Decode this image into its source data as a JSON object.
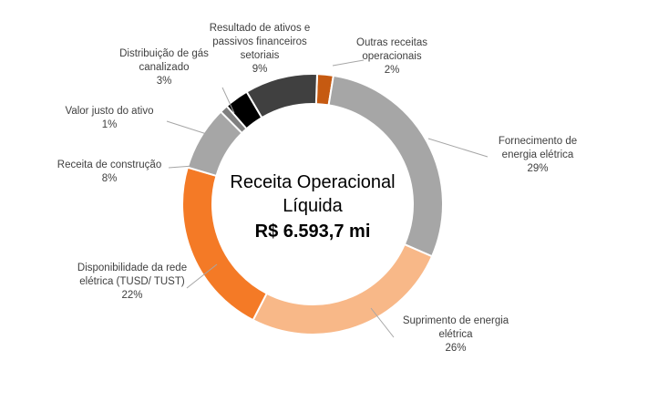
{
  "chart_data": {
    "type": "pie",
    "variant": "donut",
    "center_title_lines": [
      "Receita Operacional",
      "Líquida"
    ],
    "center_value": "R$ 6.593,7 mi",
    "slices": [
      {
        "label_lines": [
          "Outras receitas",
          "operacionais"
        ],
        "percent_label": "2%",
        "value": 2,
        "color": "#c65a11"
      },
      {
        "label_lines": [
          "Fornecimento de",
          "energia elétrica"
        ],
        "percent_label": "29%",
        "value": 29,
        "color": "#a6a6a6"
      },
      {
        "label_lines": [
          "Suprimento de energia",
          "elétrica"
        ],
        "percent_label": "26%",
        "value": 26,
        "color": "#f8b888"
      },
      {
        "label_lines": [
          "Disponibilidade da rede",
          "elétrica (TUSD/ TUST)"
        ],
        "percent_label": "22%",
        "value": 22,
        "color": "#f47a26"
      },
      {
        "label_lines": [
          "Receita de construção"
        ],
        "percent_label": "8%",
        "value": 8,
        "color": "#a6a6a6"
      },
      {
        "label_lines": [
          "Valor justo do ativo"
        ],
        "percent_label": "1%",
        "value": 1,
        "color": "#7f7f7f"
      },
      {
        "label_lines": [
          "Distribuição de gás",
          "canalizado"
        ],
        "percent_label": "3%",
        "value": 3,
        "color": "#000000"
      },
      {
        "label_lines": [
          "Resultado de ativos e",
          "passivos financeiros",
          "setoriais"
        ],
        "percent_label": "9%",
        "value": 9,
        "color": "#404040"
      }
    ]
  }
}
